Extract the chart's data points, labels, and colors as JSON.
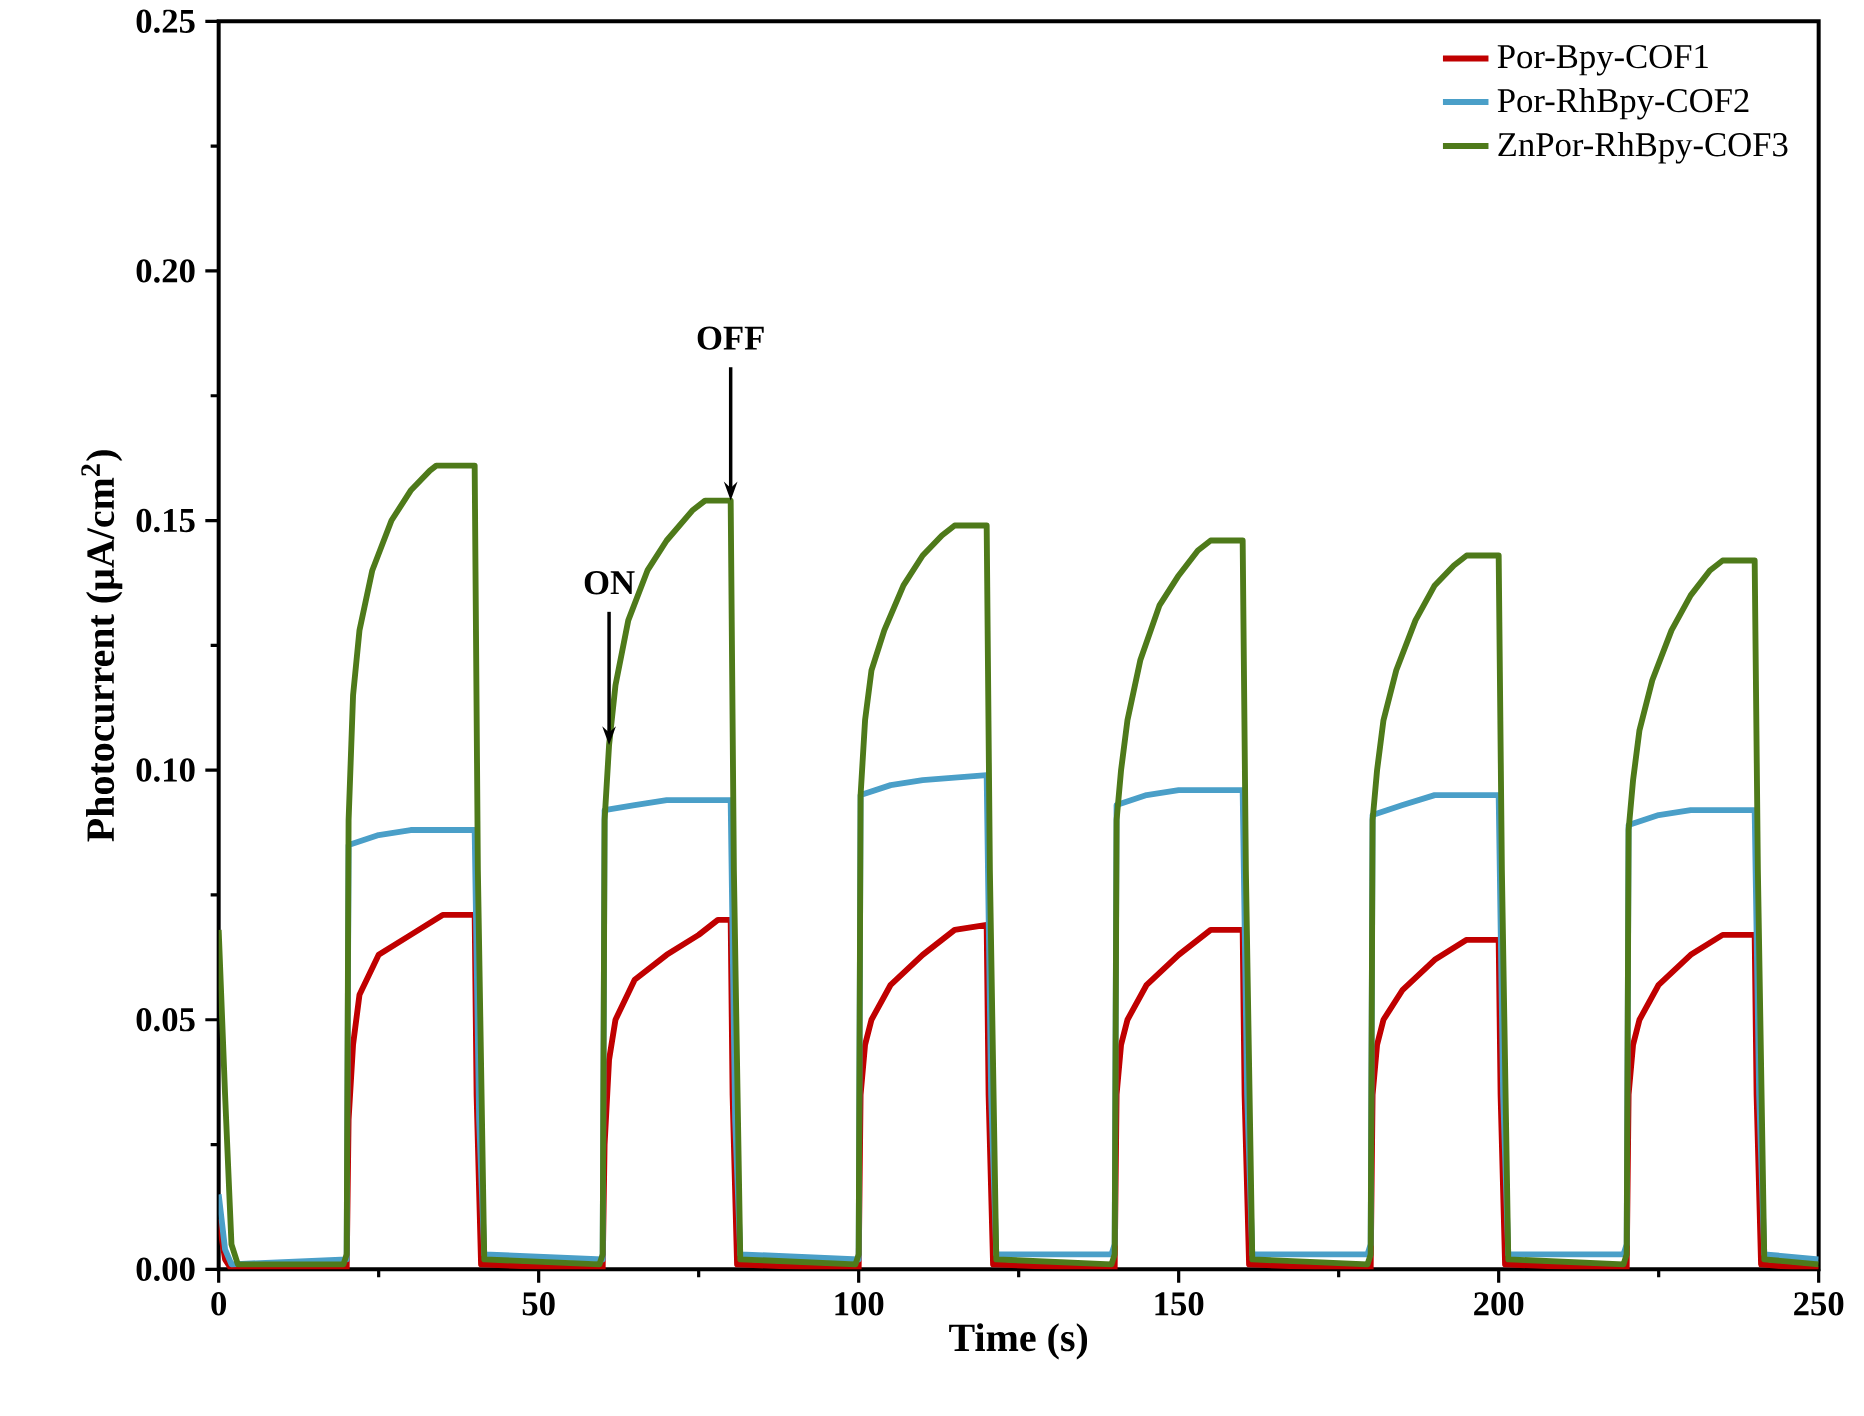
{
  "chart_data": {
    "type": "line",
    "xlabel": "Time (s)",
    "ylabel": "Photocurrent (μA/cm$^{2}$)",
    "xlim": [
      0,
      250
    ],
    "xticks": [
      0,
      50,
      100,
      150,
      200,
      250
    ],
    "ylim": [
      0,
      0.25
    ],
    "yticks": [
      {
        "value": 0,
        "label": "0.00"
      },
      {
        "value": 0.05,
        "label": "0.05"
      },
      {
        "value": 0.1,
        "label": "0.10"
      },
      {
        "value": 0.15,
        "label": "0.15"
      },
      {
        "value": 0.2,
        "label": "0.20"
      },
      {
        "value": 0.25,
        "label": "0.25"
      }
    ],
    "legend": "top right",
    "annotations": [
      {
        "text": "ON",
        "x": 61,
        "y": 0.105
      },
      {
        "text": "OFF",
        "x": 80,
        "y": 0.154
      }
    ],
    "series": [
      {
        "name": "Por-Bpy-COF1",
        "color": "#c00000",
        "x": [
          0,
          1,
          2,
          20,
          20.3,
          21,
          22,
          25,
          30,
          35,
          40,
          40.3,
          41,
          60,
          60.3,
          61,
          62,
          65,
          70,
          75,
          78,
          80,
          80.3,
          81,
          100,
          100.3,
          101,
          102,
          105,
          110,
          115,
          120,
          120.3,
          121,
          140,
          140.3,
          141,
          142,
          145,
          150,
          155,
          160,
          160.3,
          161,
          180,
          180.3,
          181,
          182,
          185,
          190,
          195,
          200,
          200.3,
          201,
          220,
          220.3,
          221,
          222,
          225,
          230,
          235,
          240,
          240.3,
          241,
          250
        ],
        "values": [
          0.01,
          0.002,
          0,
          0,
          0.03,
          0.045,
          0.055,
          0.063,
          0.067,
          0.071,
          0.071,
          0.035,
          0.001,
          0,
          0.025,
          0.042,
          0.05,
          0.058,
          0.063,
          0.067,
          0.07,
          0.07,
          0.035,
          0.001,
          0,
          0.035,
          0.045,
          0.05,
          0.057,
          0.063,
          0.068,
          0.069,
          0.035,
          0.001,
          0,
          0.035,
          0.045,
          0.05,
          0.057,
          0.063,
          0.068,
          0.068,
          0.035,
          0.001,
          0,
          0.035,
          0.045,
          0.05,
          0.056,
          0.062,
          0.066,
          0.066,
          0.035,
          0.001,
          0,
          0.035,
          0.045,
          0.05,
          0.057,
          0.063,
          0.067,
          0.067,
          0.035,
          0.001,
          0
        ]
      },
      {
        "name": "Por-RhBpy-COF2",
        "color": "#4a9fc8",
        "x": [
          0,
          1,
          2,
          20,
          20.3,
          25,
          30,
          40,
          40.7,
          41.5,
          60,
          60.3,
          65,
          70,
          80,
          80.7,
          81.5,
          100,
          100.3,
          105,
          110,
          120,
          120.7,
          121.5,
          139.5,
          140,
          140.3,
          145,
          150,
          160,
          160.7,
          161.5,
          179.5,
          180,
          180.3,
          185,
          190,
          200,
          200.7,
          201.5,
          219.5,
          220,
          220.3,
          225,
          230,
          240,
          240.7,
          241.5,
          250
        ],
        "values": [
          0.015,
          0.004,
          0.001,
          0.002,
          0.085,
          0.087,
          0.088,
          0.088,
          0.03,
          0.003,
          0.002,
          0.092,
          0.093,
          0.094,
          0.094,
          0.03,
          0.003,
          0.002,
          0.095,
          0.097,
          0.098,
          0.099,
          0.035,
          0.003,
          0.003,
          0.005,
          0.093,
          0.095,
          0.096,
          0.096,
          0.035,
          0.003,
          0.003,
          0.005,
          0.091,
          0.093,
          0.095,
          0.095,
          0.035,
          0.003,
          0.003,
          0.005,
          0.089,
          0.091,
          0.092,
          0.092,
          0.035,
          0.003,
          0.002
        ]
      },
      {
        "name": "ZnPor-RhBpy-COF3",
        "color": "#4e7a1a",
        "x": [
          0,
          1,
          2,
          3,
          19.5,
          20,
          20.3,
          21,
          22,
          24,
          27,
          30,
          33,
          34,
          40,
          40.5,
          41.5,
          59.5,
          60,
          60.3,
          61,
          62,
          64,
          67,
          70,
          74,
          76,
          80,
          80.5,
          81.5,
          99.5,
          100,
          100.3,
          101,
          102,
          104,
          107,
          110,
          113,
          115,
          120,
          120.5,
          121.5,
          139.5,
          140,
          140.3,
          141,
          142,
          144,
          147,
          150,
          153,
          155,
          160,
          160.5,
          161.5,
          179.5,
          180,
          180.3,
          181,
          182,
          184,
          187,
          190,
          193,
          195,
          200,
          200.5,
          201.5,
          219.5,
          220,
          220.3,
          221,
          222,
          224,
          227,
          230,
          233,
          235,
          240,
          240.5,
          241.5,
          250
        ],
        "values": [
          0.068,
          0.035,
          0.005,
          0.001,
          0.001,
          0.003,
          0.09,
          0.115,
          0.128,
          0.14,
          0.15,
          0.156,
          0.16,
          0.161,
          0.161,
          0.08,
          0.002,
          0.001,
          0.003,
          0.09,
          0.105,
          0.117,
          0.13,
          0.14,
          0.146,
          0.152,
          0.154,
          0.154,
          0.08,
          0.002,
          0.001,
          0.003,
          0.095,
          0.11,
          0.12,
          0.128,
          0.137,
          0.143,
          0.147,
          0.149,
          0.149,
          0.08,
          0.002,
          0.001,
          0.003,
          0.09,
          0.1,
          0.11,
          0.122,
          0.133,
          0.139,
          0.144,
          0.146,
          0.146,
          0.08,
          0.002,
          0.001,
          0.003,
          0.09,
          0.1,
          0.11,
          0.12,
          0.13,
          0.137,
          0.141,
          0.143,
          0.143,
          0.08,
          0.002,
          0.001,
          0.003,
          0.088,
          0.098,
          0.108,
          0.118,
          0.128,
          0.135,
          0.14,
          0.142,
          0.142,
          0.08,
          0.002,
          0.001
        ]
      }
    ]
  }
}
